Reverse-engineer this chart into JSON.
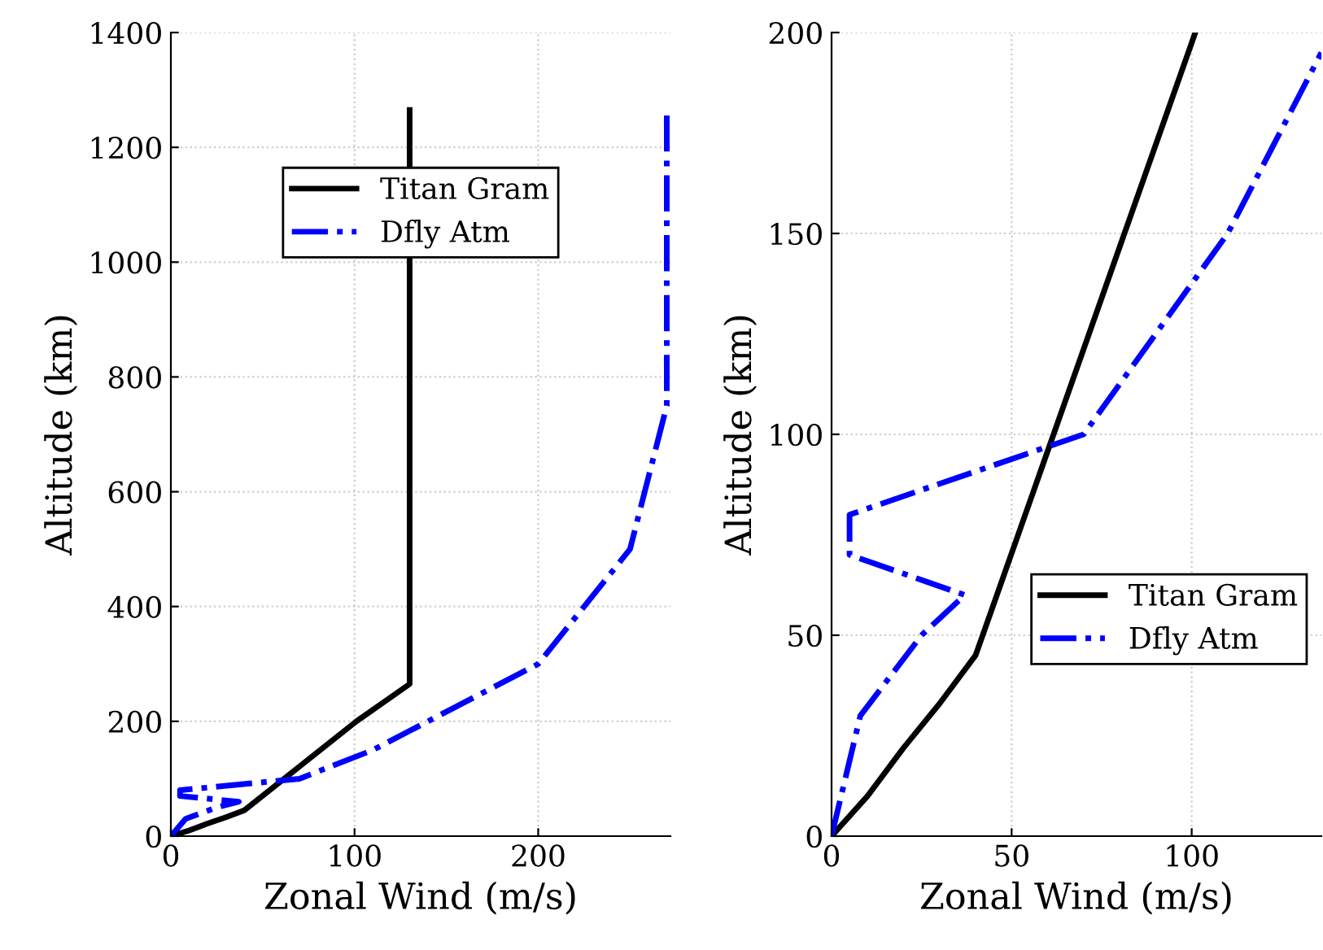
{
  "chart_data": [
    {
      "type": "line",
      "xlabel": "Zonal Wind (m/s)",
      "ylabel": "Altitude (km)",
      "xlim": [
        0,
        272
      ],
      "ylim": [
        0,
        1400
      ],
      "xticks": [
        0,
        100,
        200
      ],
      "yticks": [
        0,
        200,
        400,
        600,
        800,
        1000,
        1200,
        1400
      ],
      "grid": true,
      "legend": "top",
      "series": [
        {
          "name": "Titan Gram",
          "color": "#000000",
          "line_style": "solid",
          "x": [
            0,
            10,
            20,
            30,
            40,
            101,
            130,
            130
          ],
          "values": [
            0,
            10,
            22,
            33,
            45,
            200,
            265,
            1265
          ]
        },
        {
          "name": "Dfly Atm",
          "color": "#0000ff",
          "line_style": "dashdot",
          "x": [
            0,
            8,
            25,
            37,
            5,
            5,
            70,
            110,
            200,
            250,
            270,
            270
          ],
          "values": [
            0,
            30,
            50,
            60,
            70,
            80,
            100,
            150,
            300,
            500,
            750,
            1265
          ]
        }
      ]
    },
    {
      "type": "line",
      "xlabel": "Zonal Wind (m/s)",
      "ylabel": "Altitude (km)",
      "xlim": [
        0,
        136
      ],
      "ylim": [
        0,
        200
      ],
      "xticks": [
        0,
        50,
        100
      ],
      "yticks": [
        0,
        50,
        100,
        150,
        200
      ],
      "grid": true,
      "legend": "right",
      "series": [
        {
          "name": "Titan Gram",
          "color": "#000000",
          "line_style": "solid",
          "x": [
            0,
            10,
            20,
            30,
            40,
            101
          ],
          "values": [
            0,
            10,
            22,
            33,
            45,
            200
          ]
        },
        {
          "name": "Dfly Atm",
          "color": "#0000ff",
          "line_style": "dashdot",
          "x": [
            0,
            8,
            25,
            37,
            5,
            5,
            70,
            110,
            136
          ],
          "values": [
            0,
            30,
            50,
            60,
            70,
            80,
            100,
            150,
            195
          ]
        }
      ]
    }
  ]
}
